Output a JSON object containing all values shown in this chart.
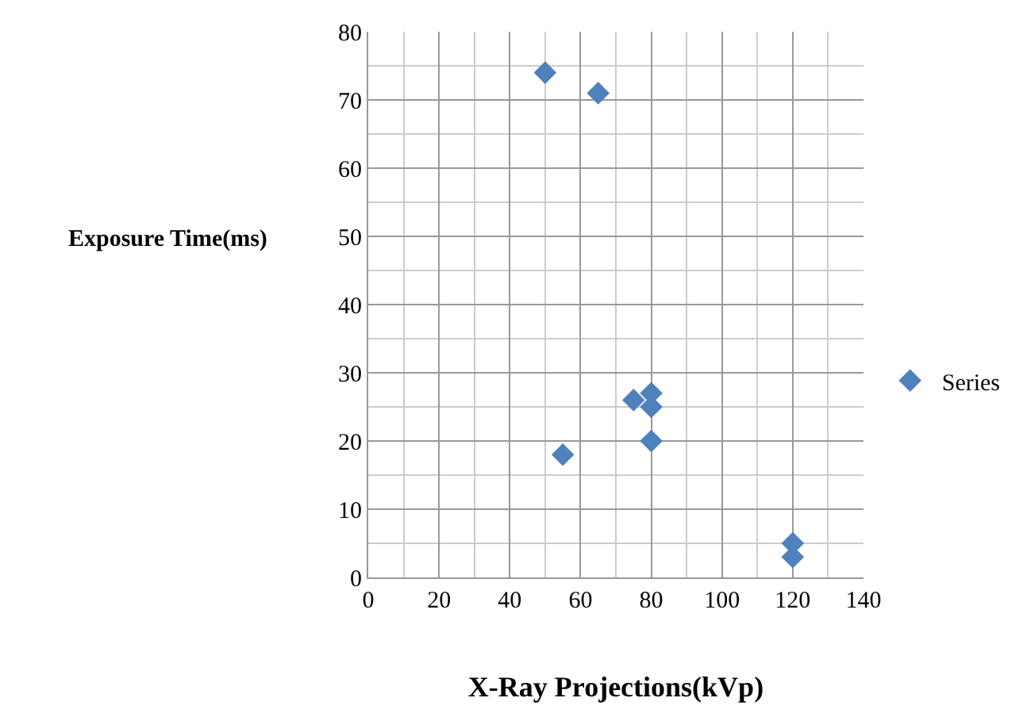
{
  "chart_data": {
    "type": "scatter",
    "xlabel": "X-Ray Projections(kVp)",
    "ylabel": "Exposure Time(ms)",
    "x": [
      50,
      65,
      55,
      75,
      80,
      80,
      80,
      120,
      120
    ],
    "series": [
      {
        "name": "Series",
        "color": "#4f81bd",
        "values": [
          74,
          71,
          18,
          26,
          27,
          25,
          20,
          5,
          3
        ]
      }
    ],
    "xlim": [
      0,
      140
    ],
    "xticks": [
      0,
      20,
      40,
      60,
      80,
      100,
      120,
      140
    ],
    "ylim": [
      0,
      80
    ],
    "yticks": [
      0,
      10,
      20,
      30,
      40,
      50,
      60,
      70,
      80
    ],
    "grid": true,
    "legend": "right",
    "marker": "diamond"
  }
}
